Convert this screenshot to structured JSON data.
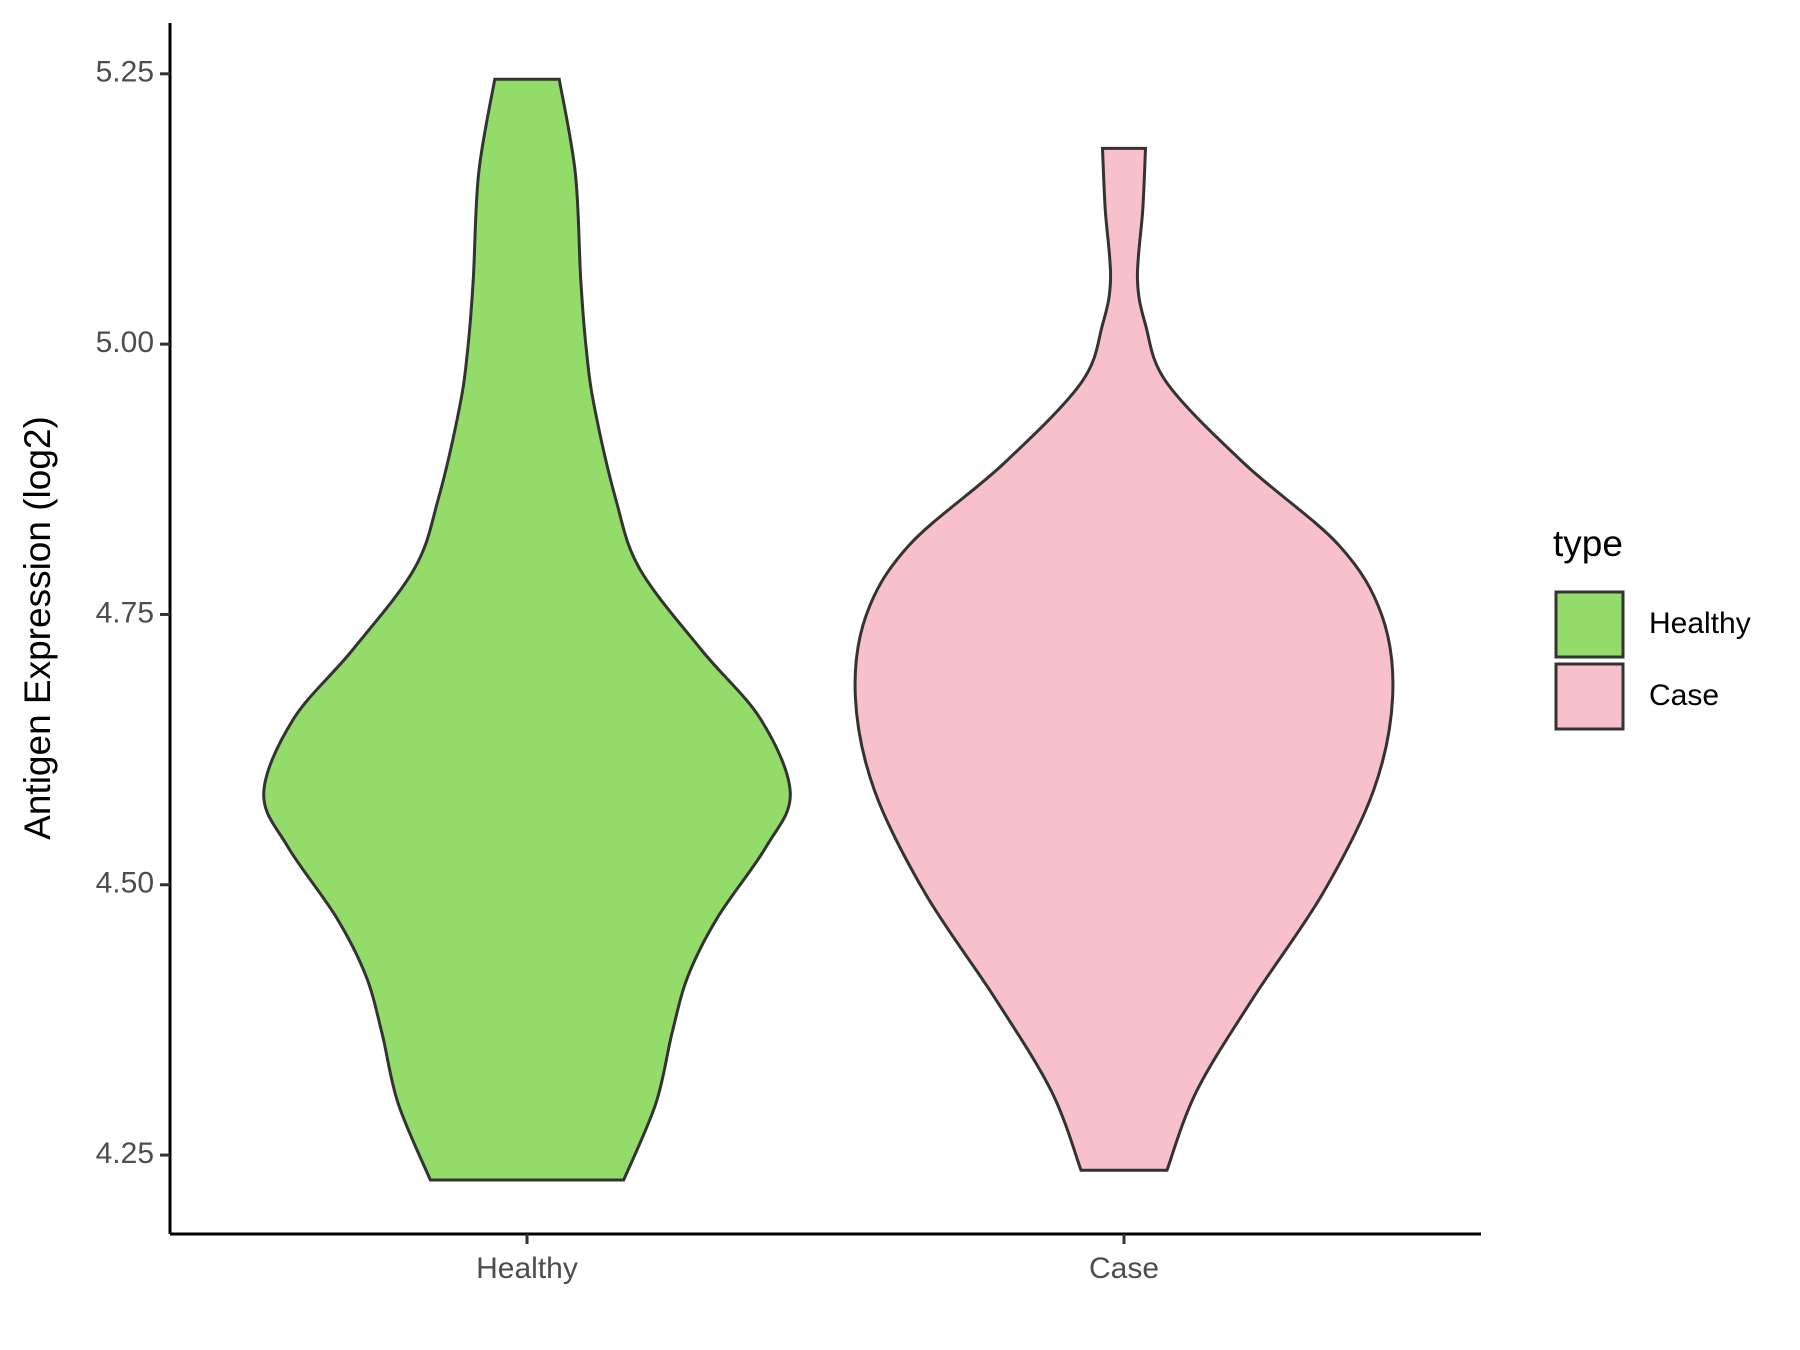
{
  "chart_data": {
    "type": "violin",
    "y_label": "Antigen Expression (log2)",
    "categories": [
      "Healthy",
      "Case"
    ],
    "legend_title": "type",
    "ylim": [
      4.177,
      5.297
    ],
    "yticks": [
      4.25,
      {
        "value": 4.5,
        "label": "4.50"
      },
      4.75,
      {
        "value": 5,
        "label": "5.00"
      },
      5.25
    ],
    "series": [
      {
        "name": "Healthy",
        "color": "#93dc6a",
        "y": [
          5.245,
          5.158,
          5.06,
          4.997,
          4.943,
          4.857,
          4.792,
          4.717,
          4.653,
          4.585,
          4.535,
          4.47,
          4.416,
          4.363,
          4.298,
          4.227
        ],
        "width": [
          0.12,
          0.18,
          0.2,
          0.22,
          0.25,
          0.33,
          0.42,
          0.65,
          0.87,
          0.98,
          0.89,
          0.71,
          0.6,
          0.54,
          0.48,
          0.36
        ]
      },
      {
        "name": "Case",
        "color": "#f8c0cb",
        "y": [
          5.181,
          5.125,
          5.061,
          5.018,
          4.964,
          4.889,
          4.814,
          4.749,
          4.674,
          4.588,
          4.492,
          4.395,
          4.309,
          4.236
        ],
        "width": [
          0.08,
          0.07,
          0.05,
          0.08,
          0.16,
          0.45,
          0.8,
          0.96,
          1.0,
          0.93,
          0.74,
          0.48,
          0.27,
          0.16
        ]
      }
    ]
  }
}
